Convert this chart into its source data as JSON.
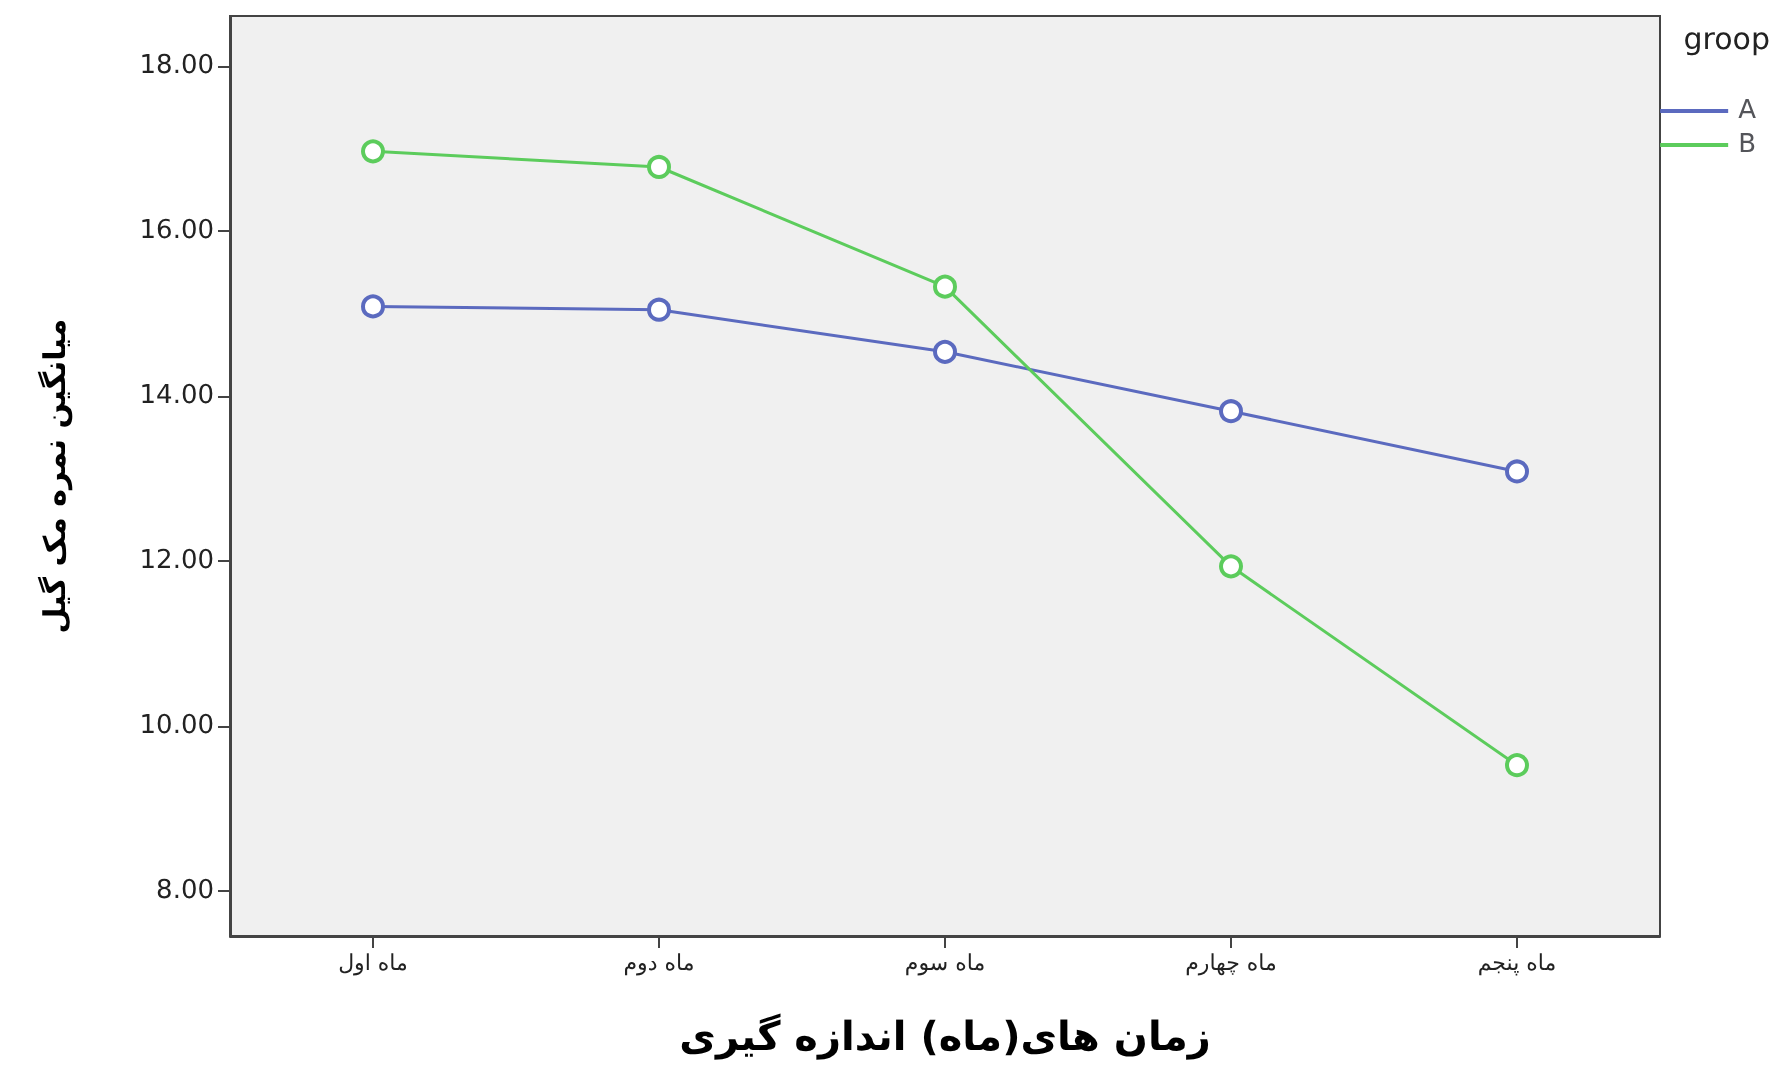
{
  "chart_data": {
    "type": "line",
    "xlabel": "زمان های(ماه) اندازه گیری",
    "ylabel": "میانگین نمره مک گیل",
    "legend_title": "groop",
    "categories": [
      "ماه اول",
      "ماه دوم",
      "ماه سوم",
      "ماه چهارم",
      "ماه پنجم"
    ],
    "series": [
      {
        "name": "A",
        "color": "#5b6abf",
        "values": [
          15.08,
          15.04,
          14.53,
          13.81,
          13.08
        ]
      },
      {
        "name": "B",
        "color": "#5ccc5c",
        "values": [
          16.96,
          16.77,
          15.32,
          11.93,
          9.52
        ]
      }
    ],
    "ylim": [
      7.45,
      18.6
    ],
    "yticks": [
      {
        "value": 8,
        "label": "8.00"
      },
      {
        "value": 10,
        "label": "10.00"
      },
      {
        "value": 12,
        "label": "12.00"
      },
      {
        "value": 14,
        "label": "14.00"
      },
      {
        "value": 16,
        "label": "16.00"
      },
      {
        "value": 18,
        "label": "18.00"
      }
    ],
    "legend": "top right",
    "marker": "circle",
    "grid": false
  }
}
